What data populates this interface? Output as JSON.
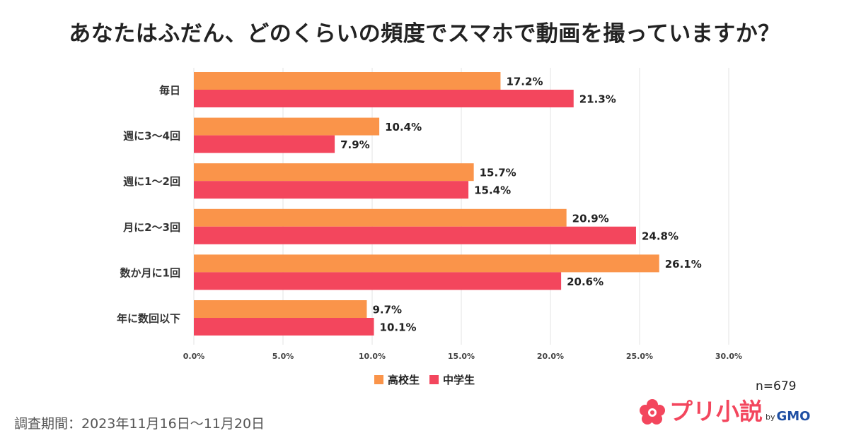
{
  "title": "あなたはふだん、どのくらいの頻度でスマホで動画を撮っていますか？",
  "colors": {
    "high_school": "#fa944a",
    "middle_school": "#f3465d",
    "grid": "#e3e3e3"
  },
  "chart_data": {
    "type": "bar",
    "orientation": "horizontal",
    "categories": [
      "毎日",
      "週に3〜4回",
      "週に1〜2回",
      "月に2〜3回",
      "数か月に1回",
      "年に数回以下"
    ],
    "series": [
      {
        "name": "高校生",
        "values": [
          17.2,
          10.4,
          15.7,
          20.9,
          26.1,
          9.7
        ],
        "labels": [
          "17.2%",
          "10.4%",
          "15.7%",
          "20.9%",
          "26.1%",
          "9.7%"
        ]
      },
      {
        "name": "中学生",
        "values": [
          21.3,
          7.9,
          15.4,
          24.8,
          20.6,
          10.1
        ],
        "labels": [
          "21.3%",
          "7.9%",
          "15.4%",
          "24.8%",
          "20.6%",
          "10.1%"
        ]
      }
    ],
    "xlim": [
      0,
      30
    ],
    "xticks": [
      "0.0%",
      "5.0%",
      "10.0%",
      "15.0%",
      "20.0%",
      "25.0%",
      "30.0%"
    ],
    "legend_position": "bottom-center",
    "grid": true
  },
  "legend": {
    "high_school": "高校生",
    "middle_school": "中学生"
  },
  "sample_size": "n=679",
  "survey_period": "調査期間：2023年11月16日〜11月20日",
  "logo": {
    "name": "プリ小説",
    "by": "by",
    "company": "GMO"
  }
}
